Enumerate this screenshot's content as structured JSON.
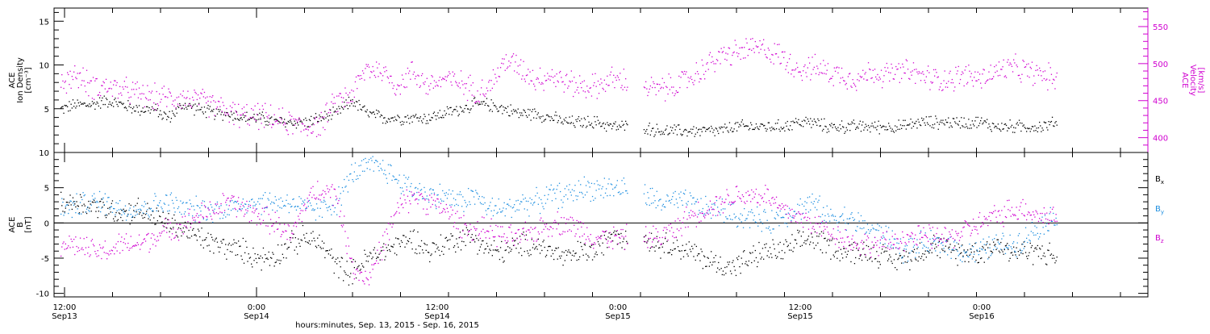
{
  "chart_data": [
    {
      "type": "scatter",
      "panel": "ion-density-velocity",
      "ylabel_lines": [
        "ACE",
        "Ion Density",
        "[cm⁻³]"
      ],
      "ylim": [
        0,
        16.5
      ],
      "yticks": [
        5,
        10,
        15
      ],
      "y2label_lines": [
        "ACE",
        "Velocity",
        "[km/s]"
      ],
      "y2lim": [
        380,
        575
      ],
      "y2ticks": [
        400,
        450,
        500,
        550
      ],
      "series": [
        {
          "name": "",
          "axis": "left",
          "color": "#000000",
          "t": [
            0,
            1,
            2,
            3,
            4,
            5,
            6,
            7,
            8,
            9,
            10,
            11,
            12,
            13,
            14,
            15,
            16,
            17,
            18,
            19,
            20,
            21,
            22,
            23,
            24,
            25,
            26,
            27,
            28,
            29,
            30,
            31,
            32,
            33,
            34,
            35,
            36,
            37,
            38,
            39,
            40,
            41,
            42,
            43,
            44,
            45,
            46,
            47,
            48,
            49,
            50,
            51,
            52,
            53,
            54,
            55,
            56,
            57,
            58,
            59,
            60,
            61,
            62,
            63,
            64,
            65
          ],
          "values": [
            5,
            5.5,
            5.5,
            6,
            5.5,
            5,
            5,
            4,
            5.5,
            5,
            4.5,
            4.5,
            4,
            4,
            3.5,
            3.5,
            3.5,
            4,
            4.5,
            6,
            4.5,
            4,
            4,
            4,
            4,
            4.5,
            5,
            5.5,
            5.5,
            5,
            4.5,
            4.5,
            4,
            3.5,
            3.5,
            3.5,
            3,
            3,
            3,
            2.5,
            2.5,
            2.5,
            2.5,
            2.5,
            3,
            3,
            3,
            3,
            3.5,
            3.5,
            3,
            3,
            3,
            3,
            3,
            3,
            3.5,
            3.5,
            3.5,
            3.5,
            3.5,
            3,
            3,
            3,
            3,
            3.5
          ]
        },
        {
          "name": "",
          "axis": "right",
          "color": "#d000d0",
          "t": [
            0,
            1,
            2,
            3,
            4,
            5,
            6,
            7,
            8,
            9,
            10,
            11,
            12,
            13,
            14,
            15,
            16,
            17,
            18,
            19,
            20,
            21,
            22,
            23,
            24,
            25,
            26,
            27,
            28,
            29,
            30,
            31,
            32,
            33,
            34,
            35,
            36,
            37,
            38,
            39,
            40,
            41,
            42,
            43,
            44,
            45,
            46,
            47,
            48,
            49,
            50,
            51,
            52,
            53,
            54,
            55,
            56,
            57,
            58,
            59,
            60,
            61,
            62,
            63,
            64,
            65
          ],
          "values": [
            475,
            485,
            470,
            470,
            465,
            460,
            455,
            455,
            455,
            450,
            445,
            435,
            430,
            430,
            425,
            420,
            415,
            420,
            450,
            460,
            495,
            490,
            470,
            490,
            470,
            480,
            475,
            465,
            470,
            505,
            495,
            480,
            485,
            475,
            470,
            470,
            480,
            475,
            470,
            465,
            470,
            480,
            495,
            510,
            515,
            520,
            520,
            510,
            495,
            495,
            490,
            485,
            480,
            490,
            485,
            490,
            485,
            480,
            480,
            485,
            480,
            490,
            495,
            490,
            485,
            480
          ]
        }
      ]
    },
    {
      "type": "scatter",
      "panel": "magnetic-field",
      "ylabel_lines": [
        "ACE",
        "B",
        "[nT]"
      ],
      "ylim": [
        -10.5,
        10
      ],
      "yticks": [
        -10,
        -5,
        0,
        5,
        10
      ],
      "zero_line": true,
      "legend": "right",
      "series": [
        {
          "name": "Bx",
          "color": "#000000",
          "t": [
            0,
            1,
            2,
            3,
            4,
            5,
            6,
            7,
            8,
            9,
            10,
            11,
            12,
            13,
            14,
            15,
            16,
            17,
            18,
            19,
            20,
            21,
            22,
            23,
            24,
            25,
            26,
            27,
            28,
            29,
            30,
            31,
            32,
            33,
            34,
            35,
            36,
            37,
            38,
            39,
            40,
            41,
            42,
            43,
            44,
            45,
            46,
            47,
            48,
            49,
            50,
            51,
            52,
            53,
            54,
            55,
            56,
            57,
            58,
            59,
            60,
            61,
            62,
            63,
            64,
            65
          ],
          "values": [
            3,
            3,
            2.5,
            2,
            1.5,
            2,
            1,
            0,
            -1,
            -2,
            -3,
            -3.5,
            -4,
            -5,
            -4.5,
            -3,
            -2,
            -3,
            -6,
            -7,
            -5,
            -4,
            -3,
            -2,
            -4,
            -3,
            -2,
            -2,
            -4,
            -4,
            -3,
            -3,
            -4,
            -5,
            -4,
            -4,
            -1,
            -2,
            -2,
            -3,
            -3,
            -4,
            -5,
            -6,
            -6,
            -5,
            -4,
            -4,
            -3,
            -2,
            -3,
            -4,
            -4,
            -4,
            -5,
            -5,
            -4,
            -3,
            -4,
            -4,
            -4,
            -3,
            -4,
            -4,
            -4,
            -5
          ]
        },
        {
          "name": "By",
          "color": "#1f8fe0",
          "t": [
            0,
            1,
            2,
            3,
            4,
            5,
            6,
            7,
            8,
            9,
            10,
            11,
            12,
            13,
            14,
            15,
            16,
            17,
            18,
            19,
            20,
            21,
            22,
            23,
            24,
            25,
            26,
            27,
            28,
            29,
            30,
            31,
            32,
            33,
            34,
            35,
            36,
            37,
            38,
            39,
            40,
            41,
            42,
            43,
            44,
            45,
            46,
            47,
            48,
            49,
            50,
            51,
            52,
            53,
            54,
            55,
            56,
            57,
            58,
            59,
            60,
            61,
            62,
            63,
            64,
            65
          ],
          "values": [
            2,
            2.5,
            3,
            3,
            2,
            2,
            2.5,
            3,
            2,
            2,
            2,
            2,
            3,
            3,
            3,
            3,
            2,
            2,
            3,
            7,
            8,
            8,
            6,
            5,
            4,
            4,
            3,
            4,
            2,
            2,
            3,
            3,
            4,
            4,
            5,
            5,
            5,
            5,
            4,
            3,
            3,
            3,
            2,
            2,
            1,
            1,
            0,
            1,
            2,
            3,
            1,
            1,
            0,
            -1,
            -2,
            -4,
            -3,
            -3,
            -3,
            -4,
            -4,
            -3,
            -3,
            -2,
            0,
            1
          ]
        },
        {
          "name": "Bz",
          "color": "#d000d0",
          "t": [
            0,
            1,
            2,
            3,
            4,
            5,
            6,
            7,
            8,
            9,
            10,
            11,
            12,
            13,
            14,
            15,
            16,
            17,
            18,
            19,
            20,
            21,
            22,
            23,
            24,
            25,
            26,
            27,
            28,
            29,
            30,
            31,
            32,
            33,
            34,
            35,
            36,
            37,
            38,
            39,
            40,
            41,
            42,
            43,
            44,
            45,
            46,
            47,
            48,
            49,
            50,
            51,
            52,
            53,
            54,
            55,
            56,
            57,
            58,
            59,
            60,
            61,
            62,
            63,
            64,
            65
          ],
          "values": [
            -3,
            -3,
            -4,
            -4,
            -3,
            -3,
            -2,
            -1,
            0,
            1,
            2,
            3,
            2,
            1,
            0,
            -2,
            3,
            5,
            4,
            -6,
            -8,
            -3,
            2,
            4,
            3,
            2,
            0,
            -1,
            -1,
            -2,
            -2,
            -1,
            0,
            0,
            -1,
            -2,
            -2,
            -2,
            -2,
            -2,
            -1,
            1,
            2,
            3,
            4,
            4,
            4,
            2,
            1,
            0,
            -1,
            -2,
            -3,
            -3,
            -3,
            -2,
            -2,
            -2,
            -2,
            -1,
            0,
            1,
            2,
            2,
            1,
            1
          ]
        }
      ]
    }
  ],
  "x_axis": {
    "tick_labels": [
      {
        "time": "12:00",
        "date": "Sep13"
      },
      {
        "time": "0:00",
        "date": "Sep14"
      },
      {
        "time": "12:00",
        "date": "Sep14"
      },
      {
        "time": "0:00",
        "date": "Sep15"
      },
      {
        "time": "12:00",
        "date": "Sep15"
      },
      {
        "time": "0:00",
        "date": "Sep16"
      }
    ],
    "title": "hours:minutes, Sep. 13, 2015 - Sep. 16, 2015",
    "data_gap_start": 37,
    "data_gap_end": 38
  },
  "legend_labels": [
    "Bx",
    "By",
    "Bz"
  ]
}
